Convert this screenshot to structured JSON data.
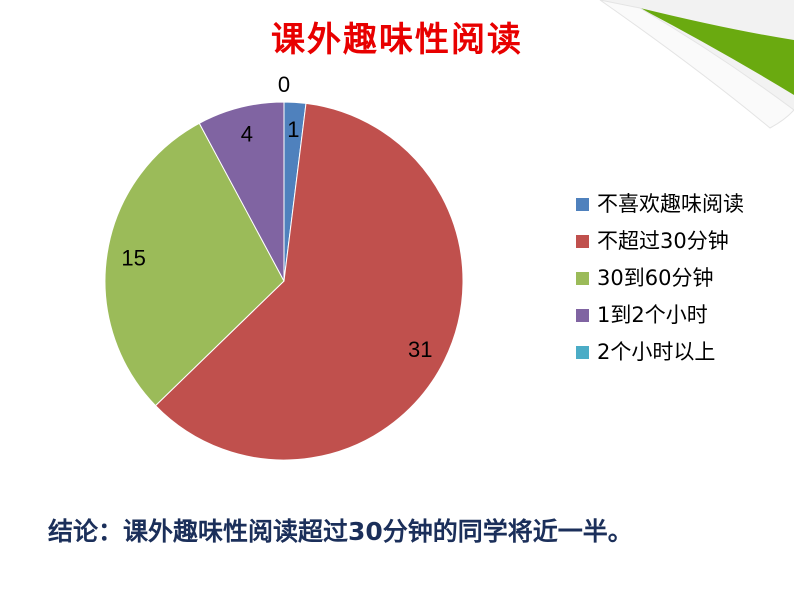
{
  "title": "课外趣味性阅读",
  "conclusion": "结论：课外趣味性阅读超过30分钟的同学将近一半。",
  "chart_data": {
    "type": "pie",
    "title": "",
    "categories": [
      "不喜欢趣味阅读",
      "不超过30分钟",
      "30到60分钟",
      "1到2个小时",
      "2个小时以上"
    ],
    "values": [
      1,
      31,
      15,
      4,
      0
    ],
    "colors": [
      "#4F81BD",
      "#C0504D",
      "#9BBB59",
      "#8064A2",
      "#4BACC6"
    ],
    "data_labels": [
      "1",
      "31",
      "15",
      "4",
      "0"
    ],
    "start_angle": "12 o'clock",
    "direction": "clockwise",
    "legend_placement": "right"
  },
  "decoration": {
    "page_curl_color": "#6aaa10"
  }
}
